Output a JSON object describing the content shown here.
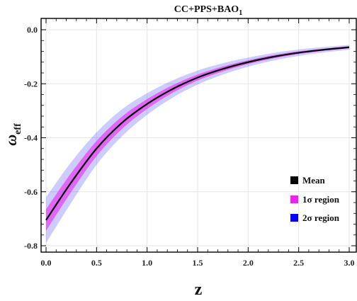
{
  "chart_data": {
    "type": "area",
    "title": "CC+PPS+BAO",
    "title_subscript": "1",
    "xlabel": "z",
    "ylabel_main": "ω",
    "ylabel_sub": "eff",
    "xlim": [
      0,
      3
    ],
    "ylim": [
      -0.82,
      0.04
    ],
    "grid": true,
    "legend_position": "bottom-right",
    "x_ticks": [
      "0.0",
      "0.5",
      "1.0",
      "1.5",
      "2.0",
      "2.5",
      "3.0"
    ],
    "x_tick_values": [
      0,
      0.5,
      1.0,
      1.5,
      2.0,
      2.5,
      3.0
    ],
    "y_ticks": [
      "0.0",
      "-0.2",
      "-0.4",
      "-0.6",
      "-0.8"
    ],
    "y_tick_values": [
      0,
      -0.2,
      -0.4,
      -0.6,
      -0.8
    ],
    "x": [
      0.0,
      0.25,
      0.5,
      0.75,
      1.0,
      1.25,
      1.5,
      1.75,
      2.0,
      2.25,
      2.5,
      2.75,
      3.0
    ],
    "series": [
      {
        "name": "Mean",
        "color": "#000000",
        "values": [
          -0.705,
          -0.565,
          -0.44,
          -0.345,
          -0.275,
          -0.22,
          -0.177,
          -0.145,
          -0.12,
          -0.1,
          -0.085,
          -0.074,
          -0.065
        ]
      },
      {
        "name": "1σ region",
        "color": "#ee22ee",
        "lower": [
          -0.745,
          -0.6,
          -0.468,
          -0.368,
          -0.293,
          -0.234,
          -0.188,
          -0.154,
          -0.127,
          -0.106,
          -0.09,
          -0.078,
          -0.069
        ],
        "upper": [
          -0.665,
          -0.53,
          -0.412,
          -0.322,
          -0.257,
          -0.206,
          -0.166,
          -0.136,
          -0.113,
          -0.094,
          -0.08,
          -0.07,
          -0.061
        ]
      },
      {
        "name": "2σ region",
        "color": "#0000ff",
        "lower": [
          -0.79,
          -0.64,
          -0.5,
          -0.395,
          -0.315,
          -0.252,
          -0.203,
          -0.166,
          -0.137,
          -0.114,
          -0.097,
          -0.084,
          -0.074
        ],
        "upper": [
          -0.62,
          -0.49,
          -0.38,
          -0.295,
          -0.235,
          -0.188,
          -0.151,
          -0.124,
          -0.103,
          -0.086,
          -0.073,
          -0.064,
          -0.056
        ]
      }
    ],
    "legend": [
      {
        "label": "Mean",
        "color": "#000000"
      },
      {
        "label": "1σ region",
        "color": "#ee22ee"
      },
      {
        "label": "2σ region",
        "color": "#0000ff"
      }
    ]
  }
}
